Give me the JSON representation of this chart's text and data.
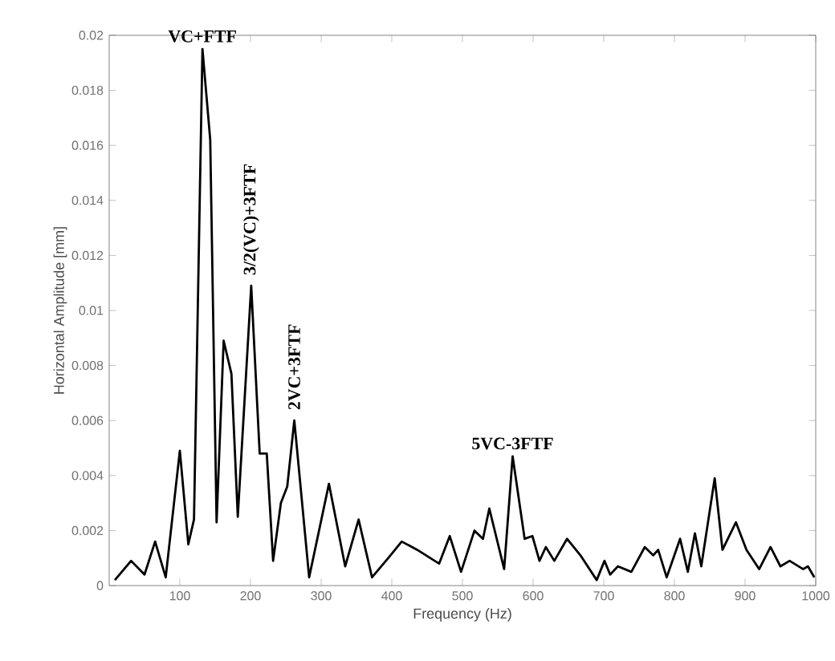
{
  "chart_data": {
    "type": "line",
    "xlabel": "Frequency (Hz)",
    "ylabel": "Horizontal Amplitude [mm]",
    "x": [
      8,
      31,
      50,
      65,
      80,
      100,
      112,
      120,
      132,
      143,
      152,
      162,
      173,
      182,
      201,
      213,
      223,
      232,
      243,
      252,
      262,
      283,
      311,
      334,
      353,
      372,
      395,
      414,
      436,
      467,
      482,
      498,
      517,
      529,
      538,
      559,
      571,
      588,
      599,
      609,
      618,
      630,
      648,
      667,
      690,
      701,
      709,
      720,
      739,
      758,
      770,
      777,
      789,
      808,
      819,
      829,
      838,
      857,
      868,
      887,
      902,
      920,
      936,
      950,
      963,
      982,
      989,
      998
    ],
    "series": [
      {
        "color": "#000000",
        "values": [
          0.0002,
          0.0009,
          0.0004,
          0.0016,
          0.0003,
          0.0049,
          0.0015,
          0.0024,
          0.0195,
          0.0162,
          0.0023,
          0.0089,
          0.0077,
          0.0025,
          0.0109,
          0.0048,
          0.0048,
          0.0009,
          0.003,
          0.0036,
          0.006,
          0.0003,
          0.0037,
          0.0007,
          0.0024,
          0.0003,
          0.001,
          0.0016,
          0.0013,
          0.0008,
          0.0018,
          0.0005,
          0.002,
          0.0017,
          0.0028,
          0.0006,
          0.0047,
          0.0017,
          0.0018,
          0.0009,
          0.0014,
          0.0009,
          0.0017,
          0.0011,
          0.0002,
          0.0009,
          0.0004,
          0.0007,
          0.0005,
          0.0014,
          0.0011,
          0.0013,
          0.0003,
          0.0017,
          0.0005,
          0.0019,
          0.0007,
          0.0039,
          0.0013,
          0.0023,
          0.0013,
          0.0006,
          0.0014,
          0.0007,
          0.0009,
          0.0006,
          0.0007,
          0.0003
        ]
      }
    ],
    "xlim": [
      0,
      1000
    ],
    "ylim": [
      0,
      0.02
    ],
    "xticks": [
      100,
      200,
      300,
      400,
      500,
      600,
      700,
      800,
      900,
      1000
    ],
    "yticks": [
      0,
      0.002,
      0.004,
      0.006,
      0.008,
      0.01,
      0.012,
      0.014,
      0.016,
      0.018,
      0.02
    ],
    "annotations": [
      {
        "text": "VC+FTF",
        "x": 132,
        "y": 0.0195
      },
      {
        "text": "3/2(VC)+3FTF",
        "x": 201,
        "y": 0.0109
      },
      {
        "text": "2VC+3FTF",
        "x": 262,
        "y": 0.006
      },
      {
        "text": "5VC-3FTF",
        "x": 571,
        "y": 0.0047
      }
    ],
    "grid": false,
    "marker": "none",
    "line_style": "solid"
  }
}
